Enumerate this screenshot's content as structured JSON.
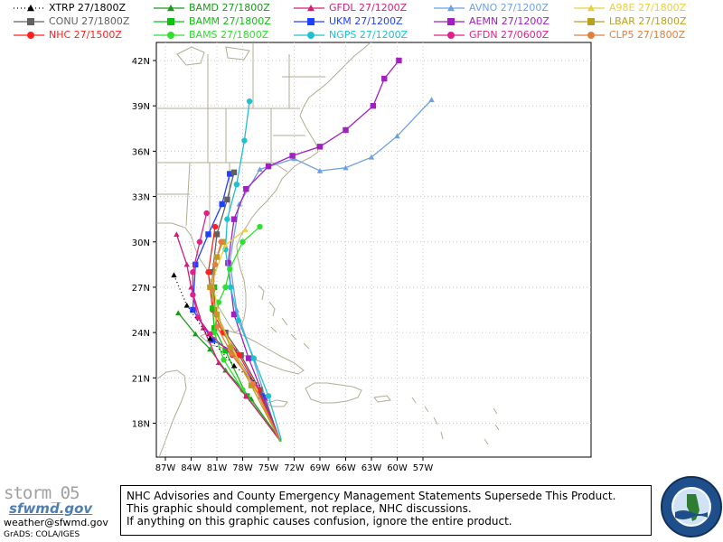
{
  "legend": [
    {
      "model": "XTRP",
      "time": "27/1800Z",
      "color": "#000000",
      "marker": "triangle",
      "dotted": true
    },
    {
      "model": "CONU",
      "time": "27/1800Z",
      "color": "#606060",
      "marker": "square",
      "dotted": false
    },
    {
      "model": "NHC",
      "time": "27/1500Z",
      "color": "#ff2020",
      "marker": "circle",
      "dotted": false
    },
    {
      "model": "BAMD",
      "time": "27/1800Z",
      "color": "#1a9a1a",
      "marker": "triangle",
      "dotted": false
    },
    {
      "model": "BAMM",
      "time": "27/1800Z",
      "color": "#10c010",
      "marker": "square",
      "dotted": false
    },
    {
      "model": "BAMS",
      "time": "27/1800Z",
      "color": "#30e030",
      "marker": "circle",
      "dotted": false
    },
    {
      "model": "GFDL",
      "time": "27/1200Z",
      "color": "#d0207a",
      "marker": "triangle",
      "dotted": false
    },
    {
      "model": "UKM",
      "time": "27/1200Z",
      "color": "#2040ff",
      "marker": "square",
      "dotted": false
    },
    {
      "model": "NGPS",
      "time": "27/1200Z",
      "color": "#20c0d0",
      "marker": "circle",
      "dotted": false
    },
    {
      "model": "AVNO",
      "time": "27/1200Z",
      "color": "#6fa0e0",
      "marker": "triangle",
      "dotted": false
    },
    {
      "model": "AEMN",
      "time": "27/1200Z",
      "color": "#a020c0",
      "marker": "square",
      "dotted": false
    },
    {
      "model": "GFDN",
      "time": "27/0600Z",
      "color": "#e0208a",
      "marker": "circle",
      "dotted": false
    },
    {
      "model": "A98E",
      "time": "27/1800Z",
      "color": "#e8d040",
      "marker": "triangle",
      "dotted": false
    },
    {
      "model": "LBAR",
      "time": "27/1800Z",
      "color": "#b8a020",
      "marker": "square",
      "dotted": false
    },
    {
      "model": "CLP5",
      "time": "27/1800Z",
      "color": "#e08040",
      "marker": "circle",
      "dotted": false
    }
  ],
  "axes": {
    "x_ticks": [
      "87W",
      "84W",
      "81W",
      "78W",
      "75W",
      "72W",
      "69W",
      "66W",
      "63W",
      "60W",
      "57W"
    ],
    "y_ticks": [
      "42N",
      "39N",
      "36N",
      "33N",
      "30N",
      "27N",
      "24N",
      "21N",
      "18N"
    ]
  },
  "tracks": [
    {
      "model": "AVNO",
      "points": [
        [
          -73.7,
          16.8
        ],
        [
          -75.3,
          19.6
        ],
        [
          -76.8,
          22.3
        ],
        [
          -78.7,
          25.5
        ],
        [
          -79.5,
          28.7
        ],
        [
          -78.4,
          32.5
        ],
        [
          -76.0,
          34.8
        ],
        [
          -72.0,
          35.5
        ],
        [
          -69.0,
          34.7
        ],
        [
          -66.0,
          34.9
        ],
        [
          -63.0,
          35.6
        ],
        [
          -60.0,
          37.0
        ],
        [
          -56.0,
          39.4
        ]
      ]
    },
    {
      "model": "AEMN",
      "points": [
        [
          -73.6,
          16.8
        ],
        [
          -75.5,
          19.7
        ],
        [
          -77.3,
          22.3
        ],
        [
          -79.0,
          25.2
        ],
        [
          -79.7,
          28.6
        ],
        [
          -79.0,
          31.5
        ],
        [
          -77.6,
          33.5
        ],
        [
          -75.0,
          35.0
        ],
        [
          -72.2,
          35.7
        ],
        [
          -69.0,
          36.3
        ],
        [
          -66.0,
          37.4
        ],
        [
          -62.8,
          39.0
        ],
        [
          -61.5,
          40.8
        ],
        [
          -59.8,
          42.0
        ]
      ]
    },
    {
      "model": "NGPS",
      "points": [
        [
          -73.5,
          16.9
        ],
        [
          -75.0,
          19.8
        ],
        [
          -76.7,
          22.3
        ],
        [
          -78.5,
          24.8
        ],
        [
          -79.4,
          27.0
        ],
        [
          -80.0,
          29.5
        ],
        [
          -79.8,
          31.5
        ],
        [
          -78.7,
          33.8
        ],
        [
          -77.8,
          36.7
        ],
        [
          -77.2,
          39.3
        ]
      ]
    },
    {
      "model": "UKM",
      "points": [
        [
          -73.7,
          16.9
        ],
        [
          -75.8,
          19.8
        ],
        [
          -79.0,
          22.7
        ],
        [
          -81.5,
          23.5
        ],
        [
          -83.8,
          25.5
        ],
        [
          -83.5,
          28.5
        ],
        [
          -82.0,
          30.5
        ],
        [
          -80.4,
          32.5
        ],
        [
          -79.5,
          34.5
        ]
      ]
    },
    {
      "model": "CONU",
      "points": [
        [
          -73.7,
          16.9
        ],
        [
          -76.0,
          20.2
        ],
        [
          -78.2,
          22.5
        ],
        [
          -80.0,
          24.0
        ],
        [
          -81.2,
          25.5
        ],
        [
          -81.5,
          28.0
        ],
        [
          -81.0,
          30.5
        ],
        [
          -79.8,
          32.8
        ],
        [
          -79.0,
          34.6
        ]
      ]
    },
    {
      "model": "NHC",
      "points": [
        [
          -73.7,
          16.9
        ],
        [
          -76.2,
          20.2
        ],
        [
          -78.4,
          22.5
        ],
        [
          -80.3,
          24.0
        ],
        [
          -81.5,
          25.5
        ],
        [
          -82.0,
          28.0
        ],
        [
          -81.2,
          31.0
        ]
      ]
    },
    {
      "model": "BAMD",
      "points": [
        [
          -73.5,
          16.8
        ],
        [
          -77.0,
          19.6
        ],
        [
          -80.0,
          21.5
        ],
        [
          -81.8,
          22.9
        ],
        [
          -83.5,
          23.9
        ],
        [
          -85.5,
          25.3
        ]
      ]
    },
    {
      "model": "BAMM",
      "points": [
        [
          -73.6,
          16.8
        ],
        [
          -77.5,
          19.8
        ],
        [
          -80.0,
          22.8
        ],
        [
          -81.3,
          24.3
        ],
        [
          -81.5,
          25.6
        ],
        [
          -81.3,
          27.0
        ]
      ]
    },
    {
      "model": "BAMS",
      "points": [
        [
          -73.6,
          16.8
        ],
        [
          -78.0,
          20.2
        ],
        [
          -80.2,
          22.2
        ],
        [
          -81.3,
          24.0
        ],
        [
          -80.8,
          26.0
        ],
        [
          -80.0,
          27.0
        ],
        [
          -79.5,
          28.2
        ],
        [
          -78.0,
          30.0
        ],
        [
          -76.0,
          31.0
        ]
      ]
    },
    {
      "model": "GFDL",
      "points": [
        [
          -73.7,
          16.9
        ],
        [
          -77.6,
          19.8
        ],
        [
          -80.8,
          22.0
        ],
        [
          -82.6,
          24.3
        ],
        [
          -84.0,
          27.0
        ],
        [
          -84.5,
          28.5
        ],
        [
          -85.7,
          30.5
        ]
      ]
    },
    {
      "model": "GFDN",
      "points": [
        [
          -73.7,
          16.9
        ],
        [
          -76.5,
          20.4
        ],
        [
          -79.2,
          22.5
        ],
        [
          -81.8,
          23.9
        ],
        [
          -83.2,
          25.0
        ],
        [
          -83.8,
          26.5
        ],
        [
          -83.8,
          28.0
        ],
        [
          -83.0,
          30.0
        ],
        [
          -82.2,
          31.9
        ]
      ]
    },
    {
      "model": "XTRP",
      "points": [
        [
          -76.0,
          20.5
        ],
        [
          -79.0,
          21.8
        ],
        [
          -81.8,
          23.6
        ],
        [
          -84.5,
          25.8
        ],
        [
          -86.0,
          27.8
        ]
      ]
    },
    {
      "model": "A98E",
      "points": [
        [
          -73.7,
          16.9
        ],
        [
          -76.5,
          20.3
        ],
        [
          -79.0,
          22.7
        ],
        [
          -80.8,
          25.0
        ],
        [
          -81.5,
          27.5
        ],
        [
          -80.0,
          29.8
        ],
        [
          -77.7,
          30.8
        ]
      ]
    },
    {
      "model": "LBAR",
      "points": [
        [
          -73.7,
          16.9
        ],
        [
          -77.0,
          20.5
        ],
        [
          -79.4,
          23.0
        ],
        [
          -81.0,
          25.2
        ],
        [
          -81.8,
          27.0
        ],
        [
          -81.0,
          29.0
        ],
        [
          -80.3,
          30.0
        ]
      ]
    },
    {
      "model": "CLP5",
      "points": [
        [
          -73.7,
          16.9
        ],
        [
          -76.8,
          20.6
        ],
        [
          -79.3,
          22.6
        ],
        [
          -81.0,
          24.4
        ],
        [
          -81.5,
          26.8
        ],
        [
          -81.2,
          28.5
        ],
        [
          -80.5,
          30.0
        ]
      ]
    }
  ],
  "footer": {
    "storm_name": "storm_05",
    "logo_text": "sfwmd.gov",
    "email": "weather@sfwmd.gov",
    "grads": "GrADS: COLA/IGES",
    "disclaimer_lines": [
      "NHC Advisories and County Emergency Management Statements Supersede This Product.",
      "This graphic should complement, not replace, NHC discussions.",
      "If anything on this graphic causes confusion, ignore the entire product."
    ],
    "seal_text": "SOUTH FLORIDA WATER MANAGEMENT DISTRICT"
  }
}
